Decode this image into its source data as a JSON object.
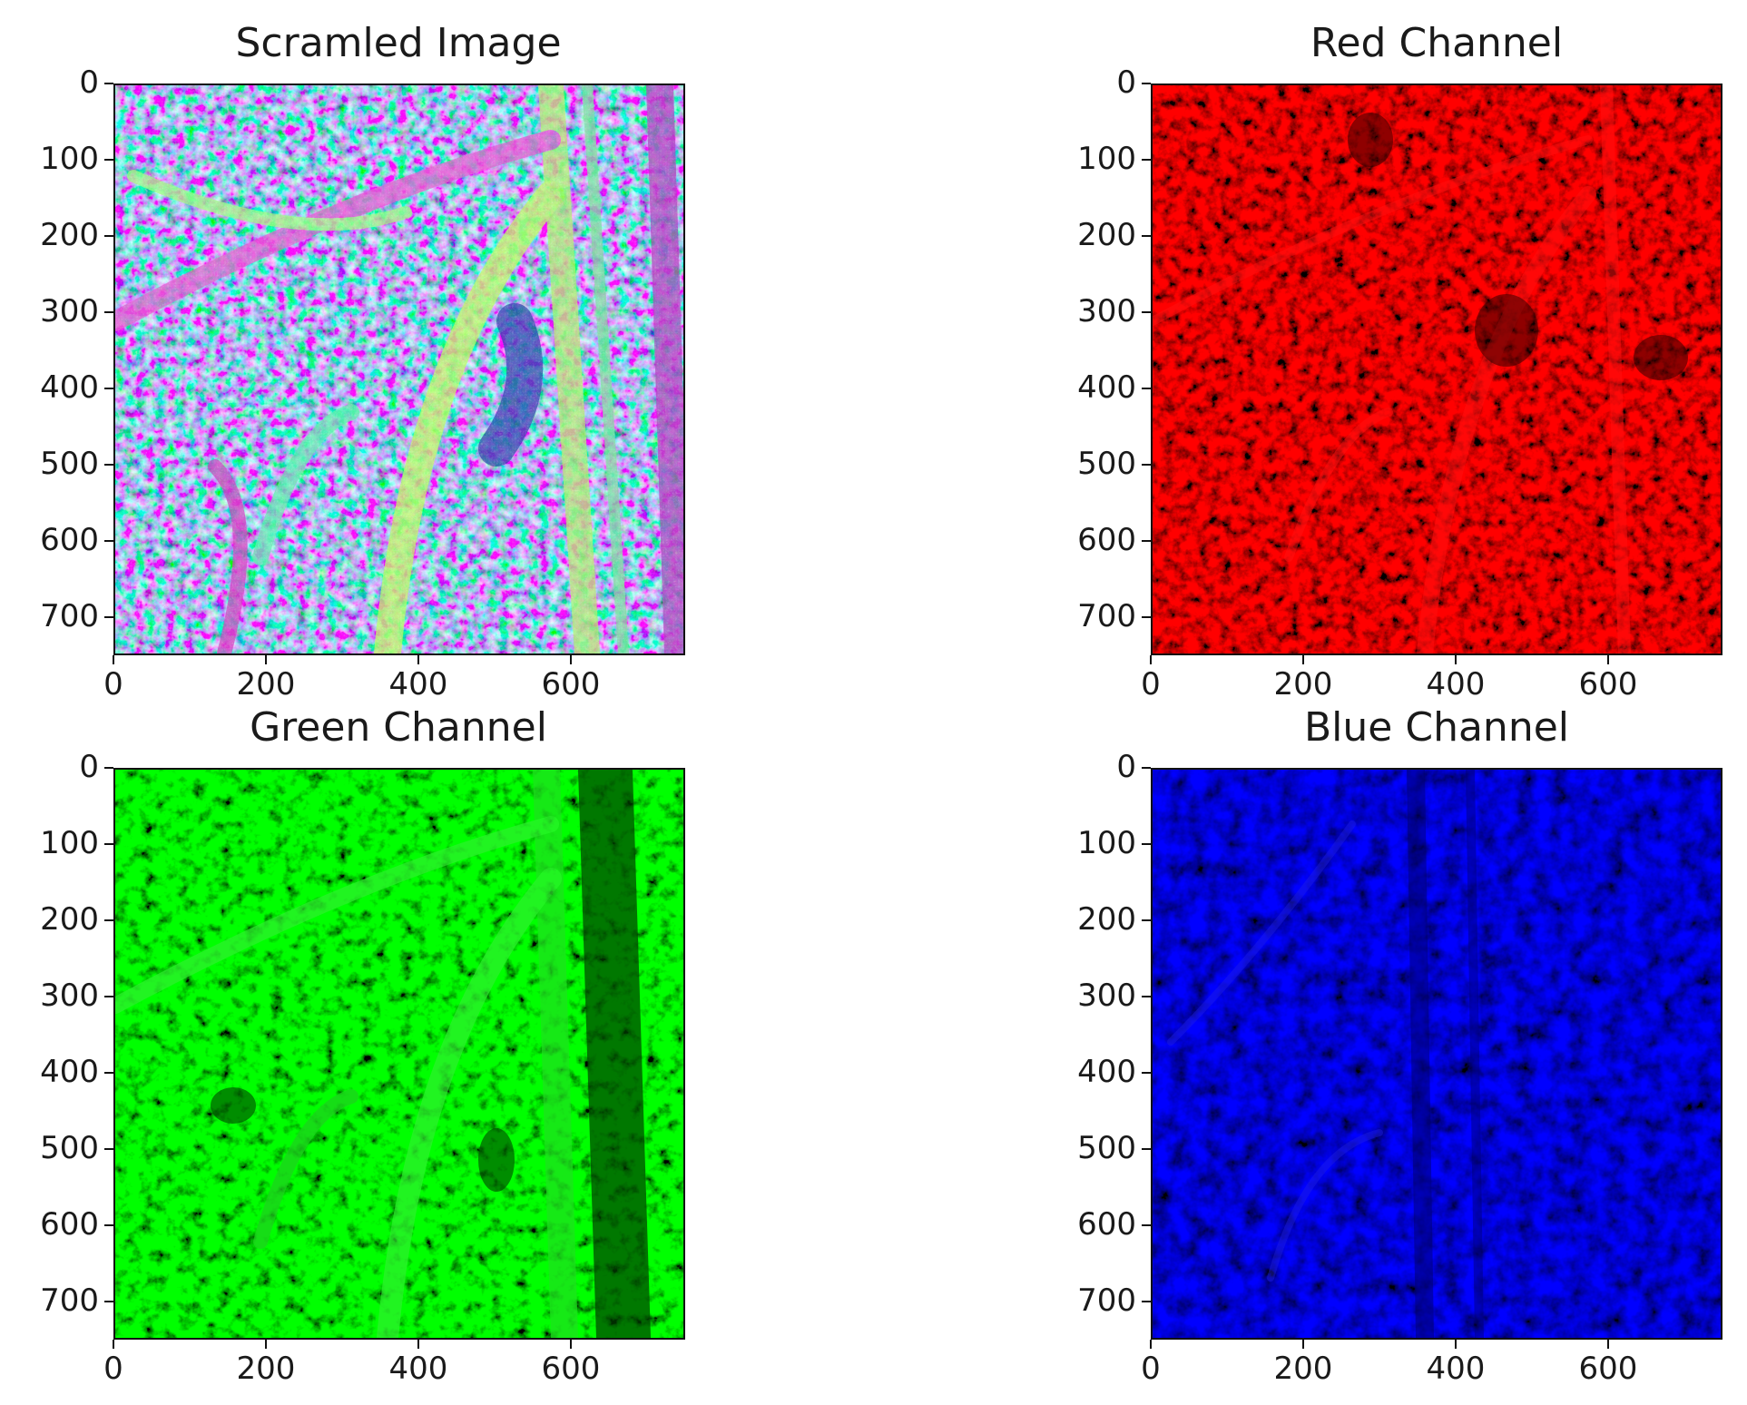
{
  "figure": {
    "panels": [
      {
        "title": "Scramled Image",
        "colors": {
          "base": "#8a5a9a"
        },
        "x_ticks": [
          "0",
          "200",
          "400",
          "600"
        ],
        "y_ticks": [
          "0",
          "100",
          "200",
          "300",
          "400",
          "500",
          "600",
          "700"
        ]
      },
      {
        "title": "Red Channel",
        "colors": {
          "base": "#b00000"
        },
        "x_ticks": [
          "0",
          "200",
          "400",
          "600"
        ],
        "y_ticks": [
          "0",
          "100",
          "200",
          "300",
          "400",
          "500",
          "600",
          "700"
        ]
      },
      {
        "title": "Green Channel",
        "colors": {
          "base": "#00b800"
        },
        "x_ticks": [
          "0",
          "200",
          "400",
          "600"
        ],
        "y_ticks": [
          "0",
          "100",
          "200",
          "300",
          "400",
          "500",
          "600",
          "700"
        ]
      },
      {
        "title": "Blue Channel",
        "colors": {
          "base": "#0000b0"
        },
        "x_ticks": [
          "0",
          "200",
          "400",
          "600"
        ],
        "y_ticks": [
          "0",
          "100",
          "200",
          "300",
          "400",
          "500",
          "600",
          "700"
        ]
      }
    ],
    "axis_range": {
      "x": [
        0,
        750
      ],
      "y": [
        0,
        750
      ]
    },
    "x_tick_values": [
      0,
      200,
      400,
      600
    ],
    "y_tick_values": [
      0,
      100,
      200,
      300,
      400,
      500,
      600,
      700
    ]
  }
}
